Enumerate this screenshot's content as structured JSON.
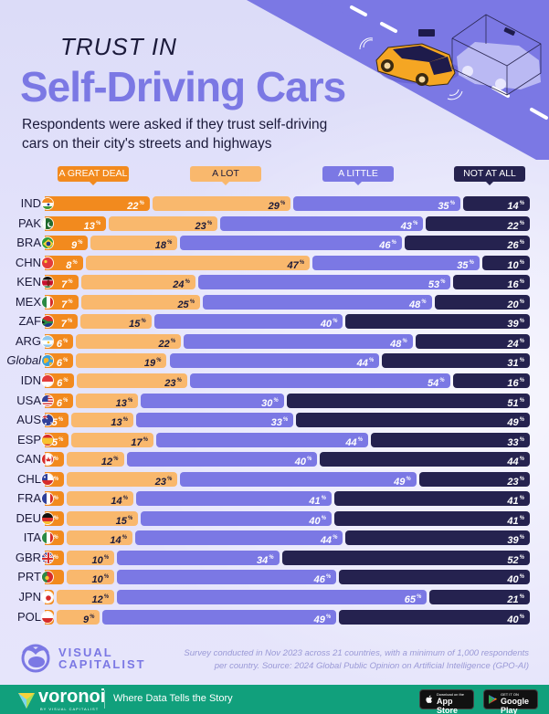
{
  "header": {
    "title_small": "TRUST IN",
    "title_big": "Self-Driving Cars",
    "subtitle": "Respondents were asked if they trust self-driving cars on their city's streets and highways"
  },
  "colors": {
    "a_great_deal": "#f28a1e",
    "a_lot": "#f9b86d",
    "a_little": "#7b78e4",
    "not_at_all": "#25224f",
    "title_accent": "#7b78e4",
    "footer_bar": "#11a07c"
  },
  "chart_data": {
    "type": "bar",
    "orientation": "horizontal-stacked-100",
    "title": "Trust in Self-Driving Cars",
    "subtitle": "Respondents were asked if they trust self-driving cars on their city's streets and highways",
    "legend": [
      "A GREAT DEAL",
      "A LOT",
      "A LITTLE",
      "NOT AT ALL"
    ],
    "legend_position": "top",
    "value_suffix": "%",
    "categories": [
      "IND",
      "PAK",
      "BRA",
      "CHN",
      "KEN",
      "MEX",
      "ZAF",
      "ARG",
      "Global",
      "IDN",
      "USA",
      "AUS",
      "ESP",
      "CAN",
      "CHL",
      "FRA",
      "DEU",
      "ITA",
      "GBR",
      "PRT",
      "JPN",
      "POL"
    ],
    "series": [
      {
        "name": "A GREAT DEAL",
        "values": [
          22,
          13,
          9,
          8,
          7,
          7,
          7,
          6,
          6,
          6,
          6,
          5,
          5,
          4,
          4,
          4,
          4,
          4,
          4,
          4,
          2,
          2
        ],
        "labeled": [
          true,
          true,
          true,
          true,
          true,
          true,
          true,
          true,
          true,
          true,
          true,
          true,
          true,
          true,
          true,
          true,
          true,
          true,
          true,
          false,
          false,
          false
        ]
      },
      {
        "name": "A LOT",
        "values": [
          29,
          23,
          18,
          47,
          24,
          25,
          15,
          22,
          19,
          23,
          13,
          13,
          17,
          12,
          23,
          14,
          15,
          14,
          10,
          10,
          12,
          9
        ]
      },
      {
        "name": "A LITTLE",
        "values": [
          35,
          43,
          46,
          35,
          53,
          48,
          40,
          48,
          44,
          54,
          30,
          33,
          44,
          40,
          49,
          41,
          40,
          44,
          34,
          46,
          65,
          49
        ]
      },
      {
        "name": "NOT AT ALL",
        "values": [
          14,
          22,
          26,
          10,
          16,
          20,
          39,
          24,
          31,
          16,
          51,
          49,
          33,
          44,
          23,
          41,
          41,
          39,
          52,
          40,
          21,
          40
        ]
      }
    ],
    "xlim": [
      0,
      100
    ],
    "grid": false
  },
  "flags": {
    "IND": "india-flag-icon",
    "PAK": "pakistan-flag-icon",
    "BRA": "brazil-flag-icon",
    "CHN": "china-flag-icon",
    "KEN": "kenya-flag-icon",
    "MEX": "mexico-flag-icon",
    "ZAF": "south-africa-flag-icon",
    "ARG": "argentina-flag-icon",
    "Global": "globe-icon",
    "IDN": "indonesia-flag-icon",
    "USA": "usa-flag-icon",
    "AUS": "australia-flag-icon",
    "ESP": "spain-flag-icon",
    "CAN": "canada-flag-icon",
    "CHL": "chile-flag-icon",
    "FRA": "france-flag-icon",
    "DEU": "germany-flag-icon",
    "ITA": "italy-flag-icon",
    "GBR": "uk-flag-icon",
    "PRT": "portugal-flag-icon",
    "JPN": "japan-flag-icon",
    "POL": "poland-flag-icon"
  },
  "footer": {
    "brand_line1": "VISUAL",
    "brand_line2": "CAPITALIST",
    "source": "Survey conducted in Nov 2023 across 21 countries, with a minimum of 1,000 respondents per country. Source: 2024 Global Public Opinion on Artificial Intelligence (GPO-AI)",
    "voronoi": "voronoi",
    "voronoi_sub": "BY VISUAL CAPITALIST",
    "tagline": "Where Data Tells the Story",
    "app_store_small": "Download on the",
    "app_store_big": "App Store",
    "google_play_small": "GET IT ON",
    "google_play_big": "Google Play"
  }
}
